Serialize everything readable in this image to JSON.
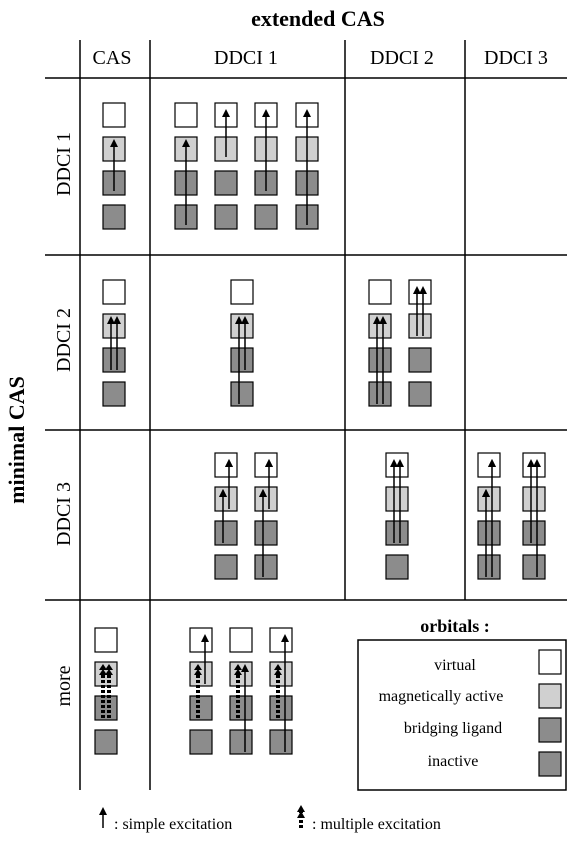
{
  "title_top": "extended CAS",
  "title_left": "minimal CAS",
  "columns": [
    "CAS",
    "DDCI 1",
    "DDCI 2",
    "DDCI 3"
  ],
  "rows": [
    "DDCI 1",
    "DDCI 2",
    "DDCI 3",
    "more"
  ],
  "legend": {
    "title": "orbitals :",
    "items": [
      {
        "label": "virtual",
        "color": "#ffffff"
      },
      {
        "label": "magnetically active",
        "color": "#d0d0d0"
      },
      {
        "label": "bridging ligand",
        "color": "#8c8c8c"
      },
      {
        "label": "inactive",
        "color": "#8c8c8c"
      }
    ]
  },
  "footer": {
    "simple": ": simple excitation",
    "multiple": ": multiple excitation"
  },
  "colors": {
    "virtual": "#ffffff",
    "active": "#d0d0d0",
    "bridging": "#8c8c8c",
    "inactive": "#8c8c8c",
    "line": "#000000"
  }
}
